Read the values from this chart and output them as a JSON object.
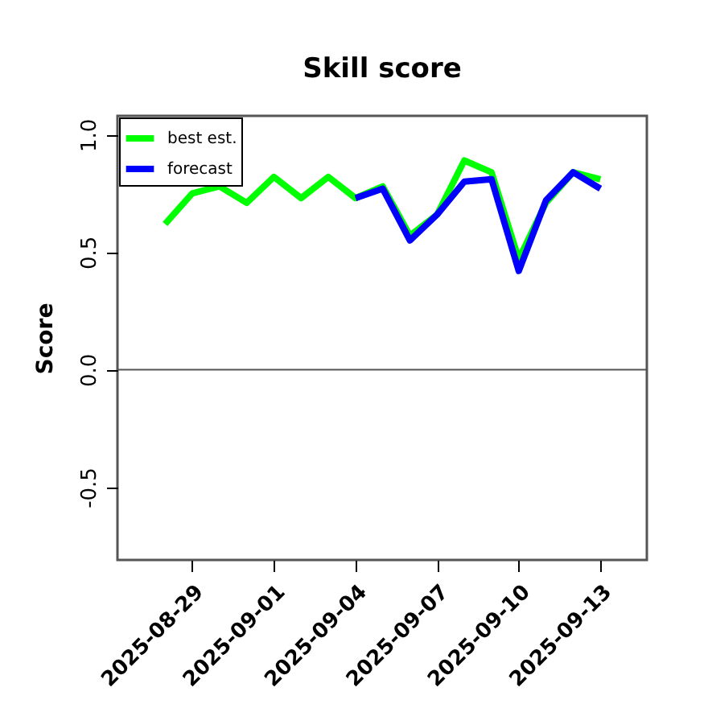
{
  "chart_data": {
    "type": "line",
    "title": "Skill score",
    "ylabel": "Score",
    "x": [
      "2025-08-28",
      "2025-08-29",
      "2025-08-30",
      "2025-08-31",
      "2025-09-01",
      "2025-09-02",
      "2025-09-03",
      "2025-09-04",
      "2025-09-05",
      "2025-09-06",
      "2025-09-07",
      "2025-09-08",
      "2025-09-09",
      "2025-09-10",
      "2025-09-11",
      "2025-09-12",
      "2025-09-13"
    ],
    "series": [
      {
        "name": "best est.",
        "color": "#00ff00",
        "values": [
          0.62,
          0.75,
          0.78,
          0.71,
          0.82,
          0.73,
          0.82,
          0.73,
          0.78,
          0.57,
          0.66,
          0.89,
          0.84,
          0.47,
          0.71,
          0.84,
          0.81
        ]
      },
      {
        "name": "forecast",
        "color": "#0000ff",
        "x": [
          "2025-09-04",
          "2025-09-05",
          "2025-09-06",
          "2025-09-07",
          "2025-09-08",
          "2025-09-09",
          "2025-09-10",
          "2025-09-11",
          "2025-09-12",
          "2025-09-13"
        ],
        "values": [
          0.73,
          0.77,
          0.55,
          0.66,
          0.8,
          0.81,
          0.42,
          0.72,
          0.84,
          0.77
        ]
      }
    ],
    "xlim": [
      "2025-08-26T06:00",
      "2025-09-14T17:00"
    ],
    "xticks": [
      "2025-08-29",
      "2025-09-01",
      "2025-09-04",
      "2025-09-07",
      "2025-09-10",
      "2025-09-13"
    ],
    "ylim": [
      -0.81,
      1.08
    ],
    "yticks": [
      -0.5,
      {
        "value": 0,
        "label": "0.0"
      },
      0.5,
      {
        "value": 1,
        "label": "1.0"
      }
    ],
    "ref_lines": [
      {
        "axis": "y",
        "value": 0,
        "color": "#555555"
      }
    ],
    "legend": "top left"
  }
}
